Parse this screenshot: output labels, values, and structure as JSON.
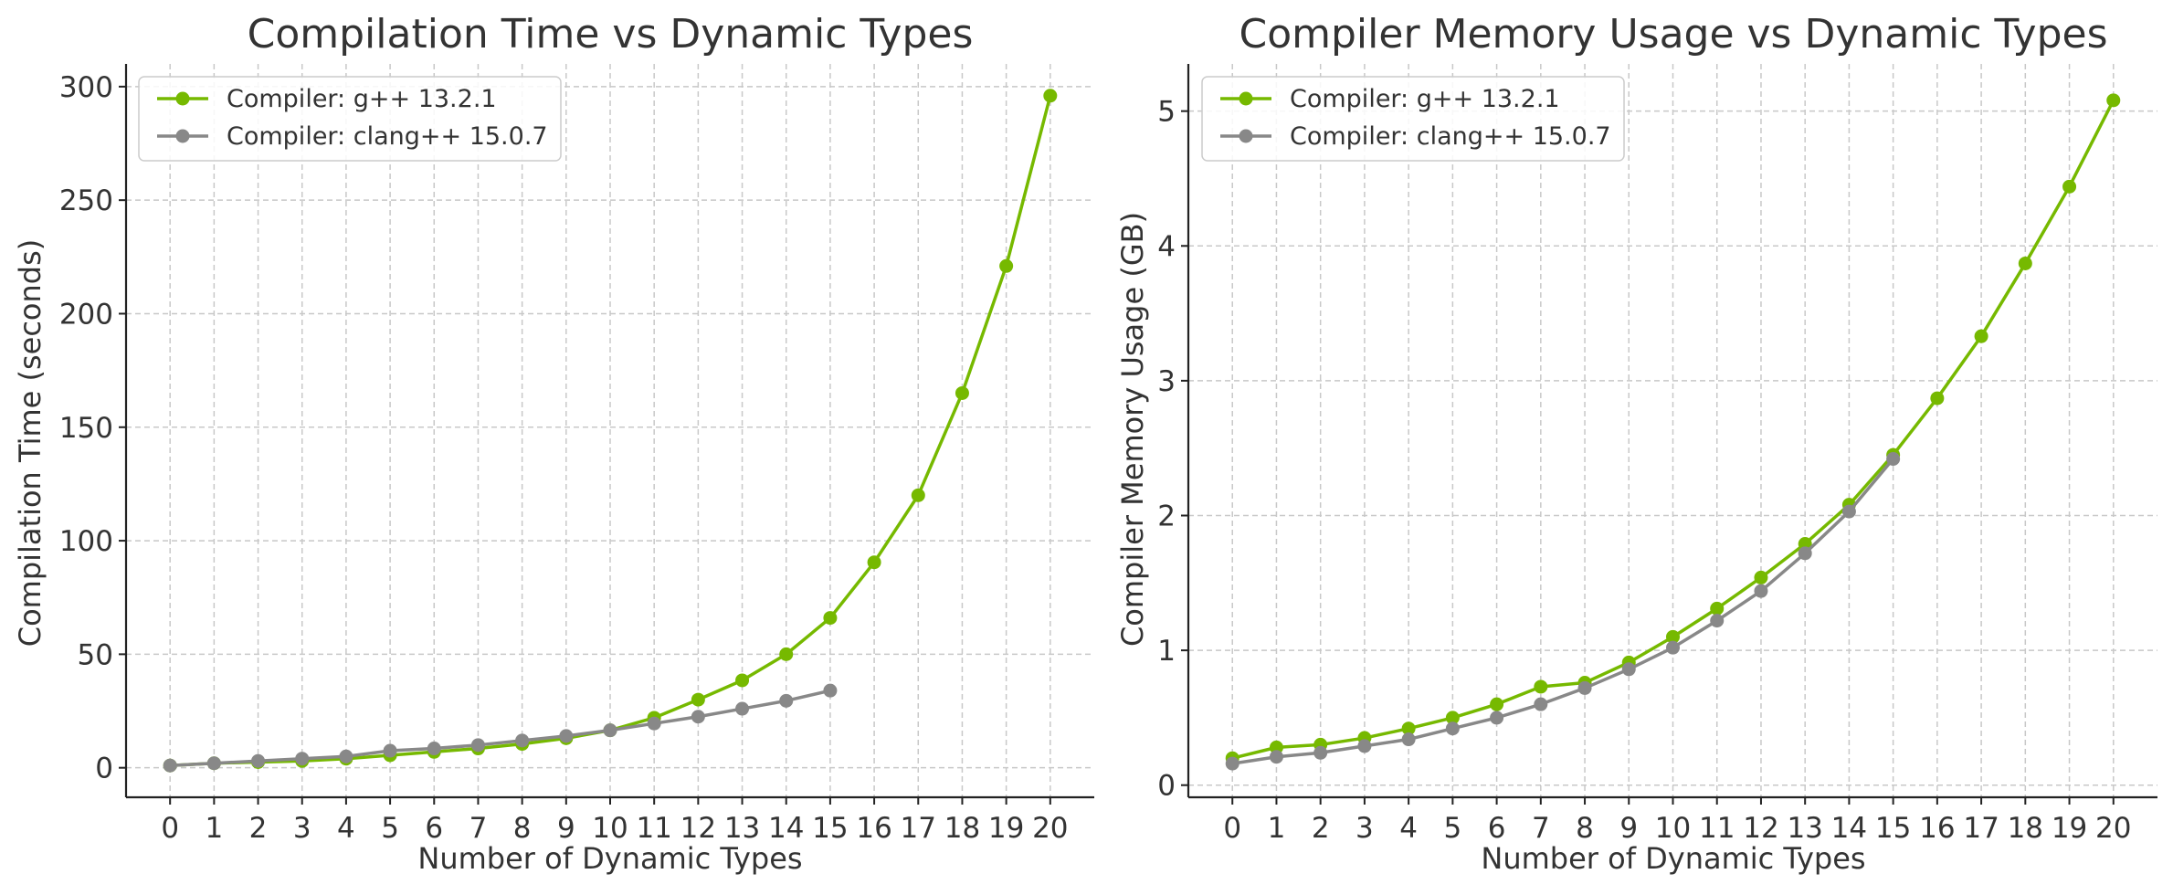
{
  "chart_data": [
    {
      "type": "line",
      "title": "Compilation Time vs Dynamic Types",
      "xlabel": "Number of Dynamic Types",
      "ylabel": "Compilation Time (seconds)",
      "xlim": [
        -1,
        21
      ],
      "ylim": [
        -13,
        310
      ],
      "xticks": [
        "0",
        "1",
        "2",
        "3",
        "4",
        "5",
        "6",
        "7",
        "8",
        "9",
        "10",
        "11",
        "12",
        "13",
        "14",
        "15",
        "16",
        "17",
        "18",
        "19",
        "20"
      ],
      "yticks": [
        0,
        50,
        100,
        150,
        200,
        250,
        300
      ],
      "grid": true,
      "legend_position": "top-left",
      "series": [
        {
          "name": "Compiler: g++ 13.2.1",
          "color": "#76b900",
          "x": [
            0,
            1,
            2,
            3,
            4,
            5,
            6,
            7,
            8,
            9,
            10,
            11,
            12,
            13,
            14,
            15,
            16,
            17,
            18,
            19,
            20
          ],
          "values": [
            1,
            2,
            2.5,
            3,
            4,
            5.5,
            7,
            8.5,
            10.5,
            13,
            16.5,
            22,
            30,
            38.5,
            50,
            66,
            90.5,
            120,
            165,
            221,
            296
          ]
        },
        {
          "name": "Compiler: clang++ 15.0.7",
          "color": "#888888",
          "x": [
            0,
            1,
            2,
            3,
            4,
            5,
            6,
            7,
            8,
            9,
            10,
            11,
            12,
            13,
            14,
            15
          ],
          "values": [
            1,
            2,
            3,
            4,
            5,
            7.5,
            8.5,
            10,
            12,
            14,
            16.5,
            19.5,
            22.5,
            26,
            29.5,
            34
          ]
        }
      ]
    },
    {
      "type": "line",
      "title": "Compiler Memory Usage vs Dynamic Types",
      "xlabel": "Number of Dynamic Types",
      "ylabel": "Compiler Memory Usage (GB)",
      "xlim": [
        -1,
        21
      ],
      "ylim": [
        -0.09,
        5.35
      ],
      "xticks": [
        "0",
        "1",
        "2",
        "3",
        "4",
        "5",
        "6",
        "7",
        "8",
        "9",
        "10",
        "11",
        "12",
        "13",
        "14",
        "15",
        "16",
        "17",
        "18",
        "19",
        "20"
      ],
      "yticks": [
        0,
        1,
        2,
        3,
        4,
        5
      ],
      "grid": true,
      "legend_position": "top-left",
      "series": [
        {
          "name": "Compiler: g++ 13.2.1",
          "color": "#76b900",
          "x": [
            0,
            1,
            2,
            3,
            4,
            5,
            6,
            7,
            8,
            9,
            10,
            11,
            12,
            13,
            14,
            15,
            16,
            17,
            18,
            19,
            20
          ],
          "values": [
            0.2,
            0.28,
            0.3,
            0.35,
            0.42,
            0.5,
            0.6,
            0.73,
            0.76,
            0.91,
            1.1,
            1.31,
            1.54,
            1.79,
            2.08,
            2.45,
            2.87,
            3.33,
            3.87,
            4.44,
            5.08
          ]
        },
        {
          "name": "Compiler: clang++ 15.0.7",
          "color": "#888888",
          "x": [
            0,
            1,
            2,
            3,
            4,
            5,
            6,
            7,
            8,
            9,
            10,
            11,
            12,
            13,
            14,
            15
          ],
          "values": [
            0.16,
            0.21,
            0.24,
            0.29,
            0.34,
            0.42,
            0.5,
            0.6,
            0.72,
            0.86,
            1.02,
            1.22,
            1.44,
            1.72,
            2.03,
            2.42
          ]
        }
      ]
    }
  ]
}
